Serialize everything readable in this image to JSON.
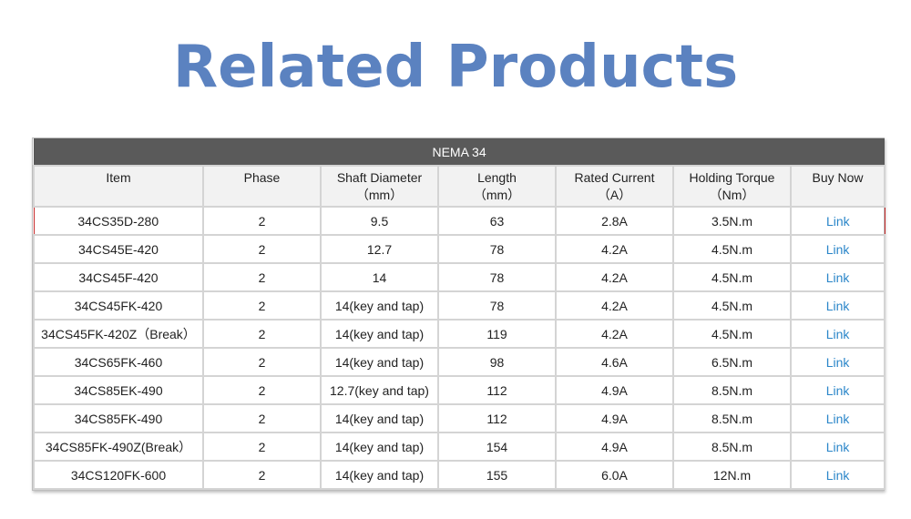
{
  "title": "Related Products",
  "table": {
    "banner": "NEMA 34",
    "headers": [
      {
        "line1": "Item",
        "line2": ""
      },
      {
        "line1": "Phase",
        "line2": ""
      },
      {
        "line1": "Shaft Diameter",
        "line2": "（mm）"
      },
      {
        "line1": "Length",
        "line2": "（mm）"
      },
      {
        "line1": "Rated Current",
        "line2": "（A）"
      },
      {
        "line1": "Holding Torque",
        "line2": "（Nm）"
      },
      {
        "line1": "Buy Now",
        "line2": ""
      }
    ],
    "rows": [
      {
        "item": "34CS35D-280",
        "phase": "2",
        "shaft": "9.5",
        "length": "63",
        "current": "2.8A",
        "torque": "3.5N.m",
        "buy": "Link",
        "highlighted": true
      },
      {
        "item": "34CS45E-420",
        "phase": "2",
        "shaft": "12.7",
        "length": "78",
        "current": "4.2A",
        "torque": "4.5N.m",
        "buy": "Link"
      },
      {
        "item": "34CS45F-420",
        "phase": "2",
        "shaft": "14",
        "length": "78",
        "current": "4.2A",
        "torque": "4.5N.m",
        "buy": "Link"
      },
      {
        "item": "34CS45FK-420",
        "phase": "2",
        "shaft": "14(key and tap)",
        "length": "78",
        "current": "4.2A",
        "torque": "4.5N.m",
        "buy": "Link"
      },
      {
        "item": "34CS45FK-420Z（Break）",
        "phase": "2",
        "shaft": "14(key and tap)",
        "length": "119",
        "current": "4.2A",
        "torque": "4.5N.m",
        "buy": "Link"
      },
      {
        "item": "34CS65FK-460",
        "phase": "2",
        "shaft": "14(key and tap)",
        "length": "98",
        "current": "4.6A",
        "torque": "6.5N.m",
        "buy": "Link"
      },
      {
        "item": "34CS85EK-490",
        "phase": "2",
        "shaft": "12.7(key and tap)",
        "length": "112",
        "current": "4.9A",
        "torque": "8.5N.m",
        "buy": "Link"
      },
      {
        "item": "34CS85FK-490",
        "phase": "2",
        "shaft": "14(key and tap)",
        "length": "112",
        "current": "4.9A",
        "torque": "8.5N.m",
        "buy": "Link"
      },
      {
        "item": "34CS85FK-490Z(Break）",
        "phase": "2",
        "shaft": "14(key and tap)",
        "length": "154",
        "current": "4.9A",
        "torque": "8.5N.m",
        "buy": "Link"
      },
      {
        "item": "34CS120FK-600",
        "phase": "2",
        "shaft": "14(key and tap)",
        "length": "155",
        "current": "6.0A",
        "torque": "12N.m",
        "buy": "Link"
      }
    ]
  },
  "colors": {
    "title": "#5b82c0",
    "banner_bg": "#5a5a5a",
    "header_bg": "#f2f2f2",
    "highlight_border": "#c62828",
    "link": "#2a86c9"
  }
}
